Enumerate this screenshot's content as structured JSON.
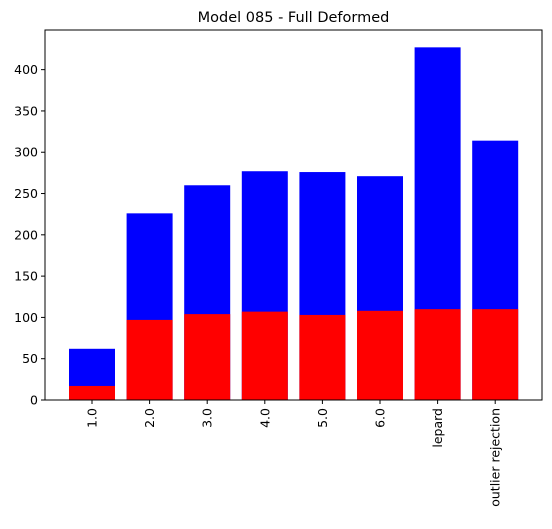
{
  "chart_data": {
    "type": "bar",
    "title": "Model 085 - Full Deformed",
    "xlabel": "",
    "ylabel": "",
    "categories": [
      "1.0",
      "2.0",
      "3.0",
      "4.0",
      "5.0",
      "6.0",
      "lepard",
      "outlier rejection"
    ],
    "series": [
      {
        "color": "#0000ff",
        "values": [
          62,
          226,
          260,
          277,
          276,
          271,
          427,
          314
        ]
      },
      {
        "color": "#ff0000",
        "values": [
          17,
          97,
          104,
          107,
          103,
          108,
          110,
          110
        ]
      }
    ],
    "ylim": [
      0,
      448
    ],
    "yticks": [
      0,
      50,
      100,
      150,
      200,
      250,
      300,
      350,
      400
    ],
    "grid": false,
    "legend": "none",
    "overlay": true
  }
}
